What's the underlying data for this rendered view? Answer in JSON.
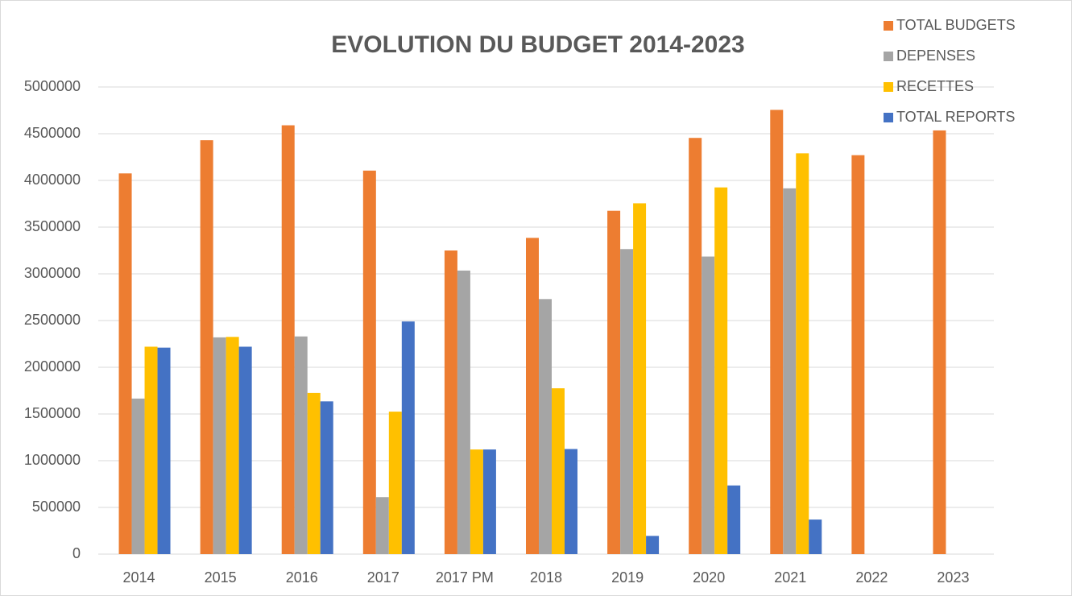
{
  "chart_data": {
    "type": "bar",
    "title": "EVOLUTION DU  BUDGET 2014-2023",
    "categories": [
      "2014",
      "2015",
      "2016",
      "2017",
      "2017 PM",
      "2018",
      "2019",
      "2020",
      "2021",
      "2022",
      "2023"
    ],
    "series": [
      {
        "name": "TOTAL BUDGETS",
        "color": "#ed7d31",
        "values": [
          4075000,
          4430000,
          4590000,
          4105000,
          3250000,
          3385000,
          3675000,
          4455000,
          4755000,
          4270000,
          4535000
        ]
      },
      {
        "name": "DEPENSES",
        "color": "#a5a5a5",
        "values": [
          1665000,
          2320000,
          2330000,
          610000,
          3035000,
          2730000,
          3265000,
          3185000,
          3915000,
          null,
          null
        ]
      },
      {
        "name": "RECETTES",
        "color": "#ffc000",
        "values": [
          2220000,
          2325000,
          1725000,
          1525000,
          1120000,
          1775000,
          3755000,
          3925000,
          4290000,
          null,
          null
        ]
      },
      {
        "name": "TOTAL REPORTS",
        "color": "#4472c4",
        "values": [
          2210000,
          2220000,
          1635000,
          2490000,
          1120000,
          1125000,
          195000,
          735000,
          370000,
          null,
          null
        ]
      }
    ],
    "ylim": [
      0,
      5000000
    ],
    "yticks": [
      0,
      500000,
      1000000,
      1500000,
      2000000,
      2500000,
      3000000,
      3500000,
      4000000,
      4500000,
      5000000
    ],
    "grid": true,
    "legend": "top-right"
  }
}
